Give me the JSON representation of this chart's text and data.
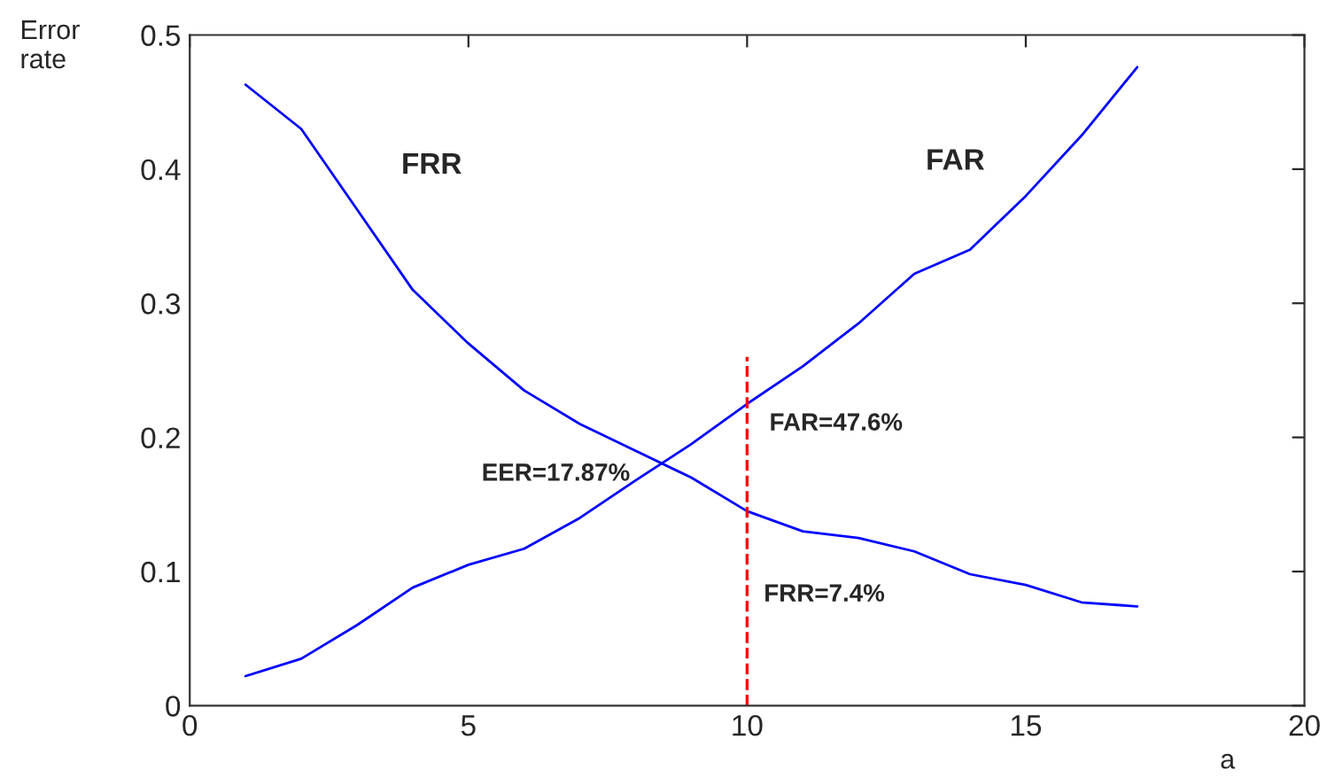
{
  "chart_data": {
    "type": "line",
    "xlabel": "a",
    "ylabel": "Error\nrate",
    "x": [
      1,
      2,
      3,
      4,
      5,
      6,
      7,
      8,
      9,
      10,
      11,
      12,
      13,
      14,
      15,
      16,
      17
    ],
    "series": [
      {
        "name": "FRR",
        "color": "#0000ff",
        "values": [
          0.463,
          0.43,
          0.37,
          0.31,
          0.27,
          0.235,
          0.21,
          0.19,
          0.17,
          0.145,
          0.13,
          0.125,
          0.115,
          0.098,
          0.09,
          0.077,
          0.074
        ]
      },
      {
        "name": "FAR",
        "color": "#0000ff",
        "values": [
          0.022,
          0.035,
          0.06,
          0.088,
          0.105,
          0.117,
          0.14,
          0.168,
          0.195,
          0.225,
          0.253,
          0.285,
          0.322,
          0.34,
          0.38,
          0.425,
          0.476
        ]
      }
    ],
    "xlim": [
      0,
      20
    ],
    "xticks": [
      0,
      5,
      10,
      15,
      20
    ],
    "ylim": [
      0,
      0.5
    ],
    "yticks": [
      0,
      0.1,
      0.2,
      0.3,
      0.4,
      0.5
    ],
    "ref_lines": [
      {
        "axis": "x",
        "value": 10,
        "color": "#ff0000",
        "line_style": "dashed"
      }
    ],
    "annotations": [
      "EER=17.87%",
      "FAR=47.6%",
      "FRR=7.4%"
    ],
    "grid": false,
    "legend": false,
    "marker": "none",
    "line_style": "solid"
  }
}
